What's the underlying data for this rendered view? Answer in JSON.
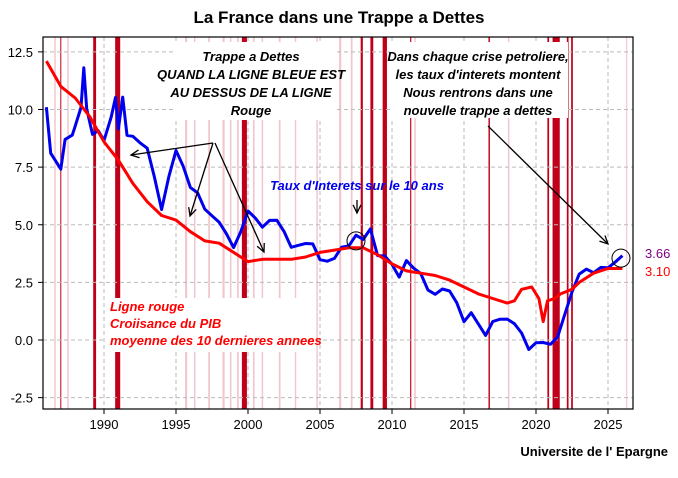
{
  "chart_data": {
    "type": "line",
    "title": "La France dans une Trappe a Dettes",
    "source": "Universite de l' Epargne",
    "xlim": [
      1985.8,
      2026.8
    ],
    "ylim": [
      -3.2,
      12.9
    ],
    "xticks": [
      1990,
      1995,
      2000,
      2005,
      2010,
      2015,
      2020,
      2025
    ],
    "xtick_labels": [
      "1990",
      "1995",
      "2000",
      "2005",
      "2010",
      "2015",
      "2020",
      "2025"
    ],
    "yticks": [
      -2.5,
      0,
      2.5,
      5,
      7.5,
      10,
      12.5
    ],
    "ytick_labels": [
      "-2.5",
      "0.0",
      "2.5",
      "5.0",
      "7.5",
      "10.0",
      "12.5"
    ],
    "grid": true,
    "series": [
      {
        "name": "Taux d'Interets sur le 10 ans",
        "color": "#0000ee",
        "last_label": "3.66",
        "last_color": "#800080",
        "x": [
          1986.0,
          1986.3,
          1986.7,
          1987,
          1987.3,
          1987.8,
          1988,
          1988.4,
          1988.6,
          1988.8,
          1989.2,
          1989.6,
          1990,
          1990.5,
          1990.8,
          1991,
          1991.3,
          1991.6,
          1992,
          1992.5,
          1993,
          1993.5,
          1994,
          1994.5,
          1995,
          1995.5,
          1996,
          1996.5,
          1997,
          1997.5,
          1998,
          1998.5,
          1999,
          1999.5,
          2000,
          2000.5,
          2001,
          2001.5,
          2002,
          2002.5,
          2003,
          2003.5,
          2004,
          2004.5,
          2005,
          2005.5,
          2006,
          2006.5,
          2007,
          2007.5,
          2008,
          2008.5,
          2009,
          2009.5,
          2010,
          2010.5,
          2011,
          2011.5,
          2012,
          2012.5,
          2013,
          2013.5,
          2014,
          2014.5,
          2015,
          2015.5,
          2016,
          2016.5,
          2017,
          2017.5,
          2018,
          2018.5,
          2019,
          2019.5,
          2020,
          2020.5,
          2021,
          2021.5,
          2022,
          2022.5,
          2023,
          2023.5,
          2024,
          2024.5,
          2025,
          2025.5,
          2026
        ],
        "y": [
          10.1,
          8.0,
          7.6,
          7.4,
          8.8,
          9.0,
          9.3,
          10.0,
          11.7,
          10.0,
          9.0,
          9.2,
          8.7,
          9.6,
          10.4,
          9.1,
          10.6,
          9.0,
          8.9,
          8.5,
          8.2,
          7.0,
          5.7,
          7.2,
          8.3,
          7.5,
          6.5,
          6.3,
          5.7,
          5.5,
          5.2,
          4.6,
          3.9,
          4.6,
          5.6,
          5.4,
          5.0,
          5.2,
          5.1,
          4.6,
          4.0,
          4.2,
          4.3,
          4.2,
          3.4,
          3.3,
          3.5,
          4.1,
          4.2,
          4.6,
          4.3,
          4.7,
          3.6,
          3.7,
          3.4,
          2.8,
          3.4,
          3.0,
          2.8,
          2.2,
          2.1,
          2.3,
          2.1,
          1.5,
          0.7,
          1.2,
          0.8,
          0.3,
          0.8,
          0.8,
          0.8,
          0.7,
          0.4,
          -0.3,
          -0.1,
          -0.2,
          -0.3,
          0.1,
          1.2,
          2.2,
          2.9,
          3.0,
          2.8,
          3.1,
          3.2,
          3.5,
          3.66
        ]
      },
      {
        "name": "Croissance du PIB moyenne des 10 dernieres annees",
        "color": "#ff0000",
        "last_label": "3.10",
        "last_color": "#ff0000",
        "x": [
          1986,
          1987,
          1988,
          1989,
          1990,
          1991,
          1992,
          1993,
          1994,
          1995,
          1996,
          1997,
          1998,
          1999,
          2000,
          2001,
          2002,
          2003,
          2004,
          2005,
          2006,
          2007,
          2008,
          2009,
          2010,
          2011,
          2012,
          2013,
          2014,
          2015,
          2016,
          2017,
          2018,
          2018.5,
          2019,
          2019.7,
          2020.2,
          2020.5,
          2020.8,
          2021.3,
          2021.7,
          2022.5,
          2023,
          2024,
          2025,
          2026
        ],
        "y": [
          12.1,
          11.0,
          10.5,
          9.7,
          8.6,
          7.8,
          6.8,
          6.0,
          5.4,
          5.2,
          4.7,
          4.3,
          4.2,
          3.8,
          3.4,
          3.5,
          3.5,
          3.5,
          3.6,
          3.8,
          3.9,
          4.0,
          4.0,
          3.7,
          3.3,
          3.0,
          2.9,
          2.8,
          2.6,
          2.3,
          2.0,
          1.8,
          1.6,
          1.7,
          2.2,
          2.3,
          1.8,
          0.8,
          1.7,
          1.8,
          2.0,
          2.2,
          2.5,
          2.9,
          3.1,
          3.1
        ]
      }
    ],
    "bands": [
      {
        "year": 1987.0,
        "span": 0.06,
        "strong": true
      },
      {
        "year": 1989.35,
        "span": 0.2,
        "strong": true
      },
      {
        "year": 1990.95,
        "span": 0.35,
        "strong": true
      },
      {
        "year": 1999.75,
        "span": 0.35,
        "strong": true
      },
      {
        "year": 2007.9,
        "span": 0.15,
        "strong": true
      },
      {
        "year": 2008.6,
        "span": 0.2,
        "strong": true
      },
      {
        "year": 2009.5,
        "span": 0.3,
        "strong": true
      },
      {
        "year": 2011.3,
        "span": 0.08,
        "strong": true
      },
      {
        "year": 2016.75,
        "span": 0.1,
        "strong": true
      },
      {
        "year": 2020.85,
        "span": 0.12,
        "strong": true
      },
      {
        "year": 2021.4,
        "span": 0.5,
        "strong": true
      },
      {
        "year": 2022.2,
        "span": 0.12,
        "strong": true
      },
      {
        "year": 2022.5,
        "span": 0.12,
        "strong": true
      },
      {
        "year": 1986.6,
        "span": 0.1,
        "strong": false
      },
      {
        "year": 1987.5,
        "span": 0.1,
        "strong": false
      },
      {
        "year": 1995.7,
        "span": 0.15,
        "strong": false
      },
      {
        "year": 1996.3,
        "span": 0.1,
        "strong": false
      },
      {
        "year": 1997.3,
        "span": 0.12,
        "strong": false
      },
      {
        "year": 1998.3,
        "span": 0.15,
        "strong": false
      },
      {
        "year": 1998.8,
        "span": 0.1,
        "strong": false
      },
      {
        "year": 1999.3,
        "span": 0.12,
        "strong": false
      },
      {
        "year": 2000.4,
        "span": 0.12,
        "strong": false
      },
      {
        "year": 2001.0,
        "span": 0.1,
        "strong": false
      },
      {
        "year": 2002.2,
        "span": 0.12,
        "strong": false
      },
      {
        "year": 2003.3,
        "span": 0.1,
        "strong": false
      },
      {
        "year": 2004.8,
        "span": 0.1,
        "strong": false
      },
      {
        "year": 2006.4,
        "span": 0.15,
        "strong": false
      },
      {
        "year": 2007.2,
        "span": 0.12,
        "strong": false
      },
      {
        "year": 2011.6,
        "span": 0.1,
        "strong": false
      },
      {
        "year": 2018.1,
        "span": 0.1,
        "strong": false
      },
      {
        "year": 2026.3,
        "span": 0.08,
        "strong": false
      }
    ],
    "annotations": {
      "trap_box": [
        "Trappe a Dettes",
        "QUAND LA LIGNE BLEUE EST",
        "AU DESSUS DE LA LIGNE",
        "Rouge"
      ],
      "oil_box": [
        "Dans chaque crise petroliere,",
        "les taux d'interets montent",
        "Nous rentrons dans une",
        "nouvelle trappe a dettes"
      ],
      "blue_label": "Taux d'Interets sur le 10 ans",
      "red_label": [
        "Ligne rouge",
        "Croiisance du PIB",
        "moyenne des 10 dernieres annees"
      ]
    }
  }
}
